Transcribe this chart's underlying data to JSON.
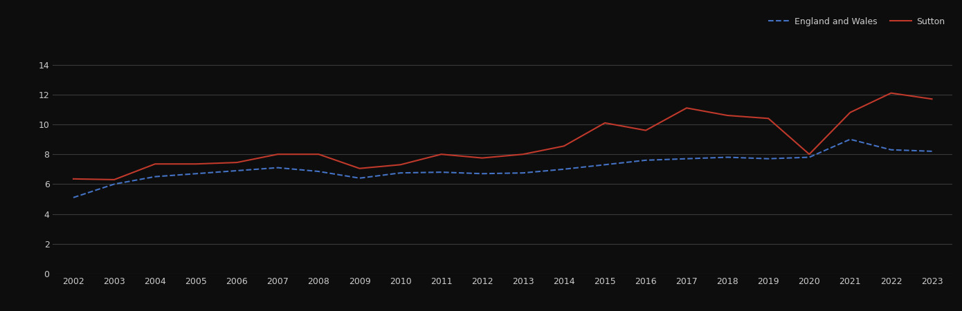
{
  "years": [
    2002,
    2003,
    2004,
    2005,
    2006,
    2007,
    2008,
    2009,
    2010,
    2011,
    2012,
    2013,
    2014,
    2015,
    2016,
    2017,
    2018,
    2019,
    2020,
    2021,
    2022,
    2023
  ],
  "england_wales": [
    5.1,
    6.0,
    6.5,
    6.7,
    6.9,
    7.1,
    6.85,
    6.4,
    6.75,
    6.8,
    6.7,
    6.75,
    7.0,
    7.3,
    7.6,
    7.7,
    7.8,
    7.7,
    7.8,
    9.0,
    8.3,
    8.2
  ],
  "sutton": [
    6.35,
    6.3,
    7.35,
    7.35,
    7.45,
    8.0,
    8.0,
    7.05,
    7.3,
    8.0,
    7.75,
    8.0,
    8.55,
    10.1,
    9.6,
    11.1,
    10.6,
    10.4,
    8.0,
    10.8,
    12.1,
    11.7
  ],
  "england_wales_color": "#4472c4",
  "sutton_color": "#c0392b",
  "background_color": "#0d0d0d",
  "grid_color": "#3a3a3a",
  "text_color": "#cccccc",
  "tick_color": "#cccccc",
  "ylim": [
    0,
    15
  ],
  "yticks": [
    0,
    2,
    4,
    6,
    8,
    10,
    12,
    14
  ],
  "legend_labels": [
    "England and Wales",
    "Sutton"
  ],
  "figsize": [
    13.9,
    4.5
  ],
  "dpi": 100
}
